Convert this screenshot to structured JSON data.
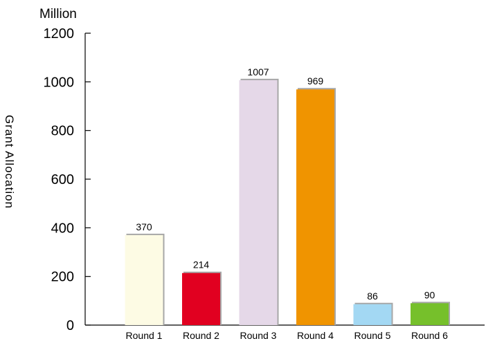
{
  "chart_data": {
    "type": "bar",
    "unit_label": "Million",
    "ylabel": "Grant  Allocation",
    "categories": [
      "Round 1",
      "Round 2",
      "Round 3",
      "Round 4",
      "Round 5",
      "Round 6"
    ],
    "values": [
      370,
      214,
      1007,
      969,
      86,
      90
    ],
    "data_labels": [
      "370",
      "214",
      "1007",
      "969",
      "86",
      "90"
    ],
    "colors": [
      "#fdfbe4",
      "#e10020",
      "#e5d8e8",
      "#f09400",
      "#a3d8f3",
      "#76c02b"
    ],
    "ylim": [
      0,
      1200
    ],
    "yticks": [
      0,
      200,
      400,
      600,
      800,
      1000,
      1200
    ],
    "grid": false,
    "legend": "none"
  }
}
